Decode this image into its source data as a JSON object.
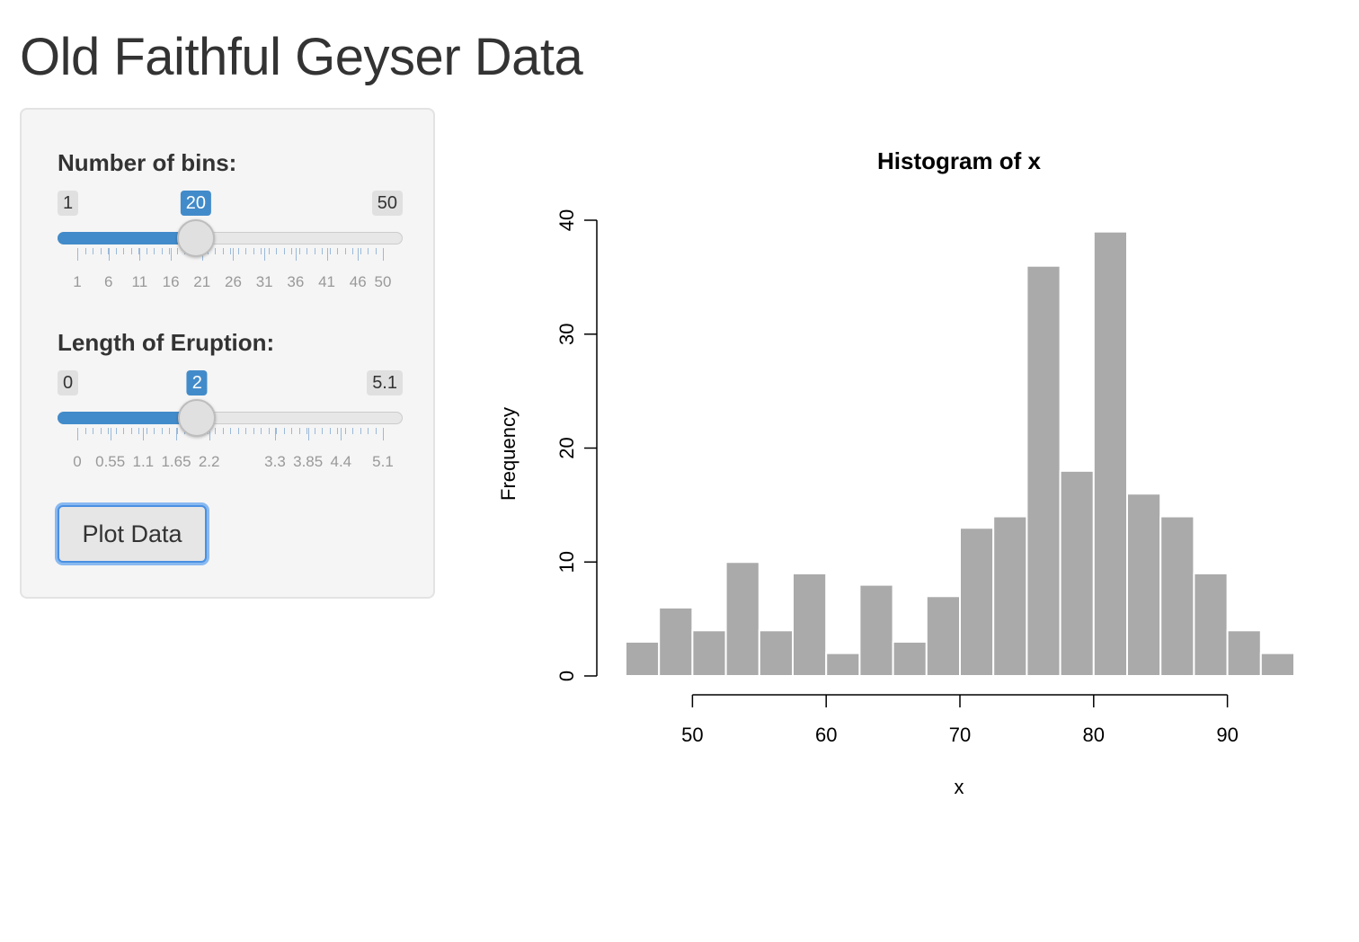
{
  "page": {
    "title": "Old Faithful Geyser Data"
  },
  "sidebar": {
    "bins": {
      "label": "Number of bins:",
      "min_label": "1",
      "max_label": "50",
      "value_label": "20",
      "min": 1,
      "max": 50,
      "value": 20,
      "major_ticks": [
        1,
        6,
        11,
        16,
        21,
        26,
        31,
        36,
        41,
        46,
        50
      ],
      "tick_labels": [
        "1",
        "6",
        "11",
        "16",
        "21",
        "26",
        "31",
        "36",
        "41",
        "46",
        "50"
      ],
      "fill_color": "#428bca"
    },
    "eruption": {
      "label": "Length of Eruption:",
      "min_label": "0",
      "max_label": "5.1",
      "value_label": "2",
      "min": 0,
      "max": 5.1,
      "value": 2,
      "major_ticks": [
        0,
        0.55,
        1.1,
        1.65,
        2.2,
        3.3,
        3.85,
        4.4,
        5.1
      ],
      "tick_labels": [
        "0",
        "0.55",
        "1.1",
        "1.65",
        "2.2",
        "3.3",
        "3.85",
        "4.4",
        "5.1"
      ],
      "fill_color": "#428bca"
    },
    "plot_button_label": "Plot Data"
  },
  "chart_data": {
    "type": "bar",
    "title": "Histogram of x",
    "xlabel": "x",
    "ylabel": "Frequency",
    "bin_edges": [
      45,
      47.5,
      50,
      52.5,
      55,
      57.5,
      60,
      62.5,
      65,
      67.5,
      70,
      72.5,
      75,
      77.5,
      80,
      82.5,
      85,
      87.5,
      90,
      92.5,
      95
    ],
    "values": [
      3,
      6,
      4,
      10,
      4,
      9,
      2,
      8,
      3,
      7,
      13,
      14,
      36,
      18,
      39,
      16,
      14,
      9,
      4,
      2
    ],
    "xticks": [
      50,
      60,
      70,
      80,
      90
    ],
    "xtick_labels": [
      "50",
      "60",
      "70",
      "80",
      "90"
    ],
    "yticks": [
      0,
      10,
      20,
      30,
      40
    ],
    "ytick_labels": [
      "0",
      "10",
      "20",
      "30",
      "40"
    ],
    "ylim": [
      0,
      40
    ],
    "bar_color": "#aaaaaa",
    "grid": false
  }
}
